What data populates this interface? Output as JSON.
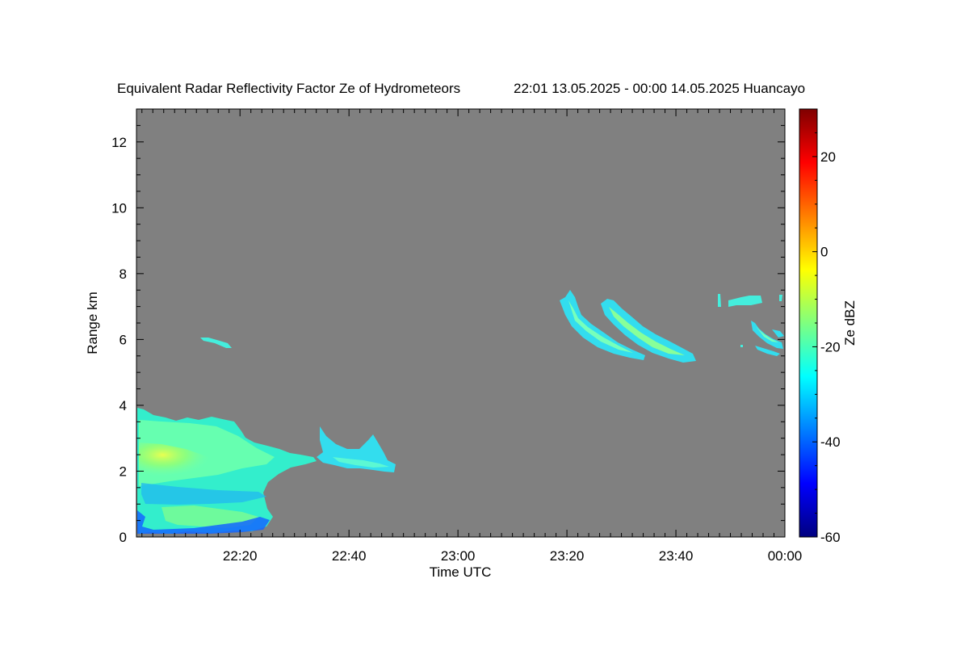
{
  "chart_data": {
    "type": "heatmap",
    "title_left": "Equivalent Radar Reflectivity Factor Ze of Hydrometeors",
    "title_right": "22:01 13.05.2025 - 00:00 14.05.2025 Huancayo",
    "xlabel": "Time UTC",
    "ylabel": "Range km",
    "x_time_range": [
      "22:01",
      "00:00"
    ],
    "x_ticks": [
      "22:20",
      "22:40",
      "23:00",
      "23:20",
      "23:40",
      "00:00"
    ],
    "ylim": [
      0,
      13
    ],
    "y_ticks": [
      "0",
      "2",
      "4",
      "6",
      "8",
      "10",
      "12"
    ],
    "background_color": "#808080",
    "colorbar": {
      "label": "Ze dBZ",
      "range": [
        -60,
        30
      ],
      "ticks": [
        "-60",
        "-40",
        "-20",
        "0",
        "20"
      ],
      "colormap": [
        "#00007f",
        "#0000ff",
        "#007fff",
        "#00ffff",
        "#7fff7f",
        "#ffff00",
        "#ff7f00",
        "#ff0000",
        "#7f0000"
      ]
    },
    "echo_regions": [
      {
        "desc": "low deep cloud",
        "start": "22:01",
        "end": "22:25",
        "range_km": [
          0.1,
          3.9
        ],
        "ze_dbz": -15
      },
      {
        "desc": "trailing layer",
        "start": "22:25",
        "end": "22:49",
        "range_km": [
          1.9,
          3.4
        ],
        "ze_dbz": -28
      },
      {
        "desc": "thin layer",
        "start": "22:13",
        "end": "22:19",
        "range_km": [
          5.7,
          6.1
        ],
        "ze_dbz": -30
      },
      {
        "desc": "fall streak 1",
        "start": "23:19",
        "end": "23:36",
        "range_km": [
          5.4,
          7.5
        ],
        "ze_dbz": -22
      },
      {
        "desc": "fall streak 2",
        "start": "23:27",
        "end": "23:45",
        "range_km": [
          5.3,
          7.2
        ],
        "ze_dbz": -20
      },
      {
        "desc": "upper patches",
        "start": "23:48",
        "end": "23:57",
        "range_km": [
          7.0,
          7.4
        ],
        "ze_dbz": -25
      },
      {
        "desc": "fall streak 3",
        "start": "23:54",
        "end": "00:00",
        "range_km": [
          5.6,
          6.7
        ],
        "ze_dbz": -23
      }
    ]
  }
}
